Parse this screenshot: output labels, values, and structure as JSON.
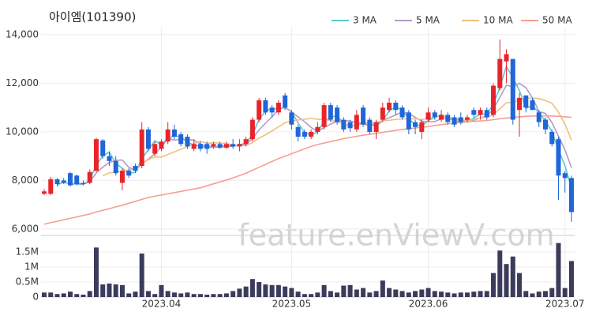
{
  "chart_data": {
    "type": "candlestick",
    "title": "아이엠(101390)",
    "watermark": "feature.enViewV.com",
    "up_color": "#e8242b",
    "down_color": "#1f66d9",
    "grid": true,
    "categories": [
      null,
      null,
      null,
      null,
      null,
      null,
      null,
      null,
      null,
      null,
      null,
      null,
      null,
      null,
      null,
      null,
      null,
      null,
      "2023.04",
      null,
      null,
      null,
      null,
      null,
      null,
      null,
      null,
      null,
      null,
      null,
      null,
      null,
      null,
      null,
      null,
      null,
      null,
      null,
      "2023.05",
      null,
      null,
      null,
      null,
      null,
      null,
      null,
      null,
      null,
      null,
      null,
      null,
      null,
      null,
      null,
      null,
      null,
      null,
      null,
      null,
      "2023.06",
      null,
      null,
      null,
      null,
      null,
      null,
      null,
      null,
      null,
      null,
      null,
      null,
      null,
      null,
      null,
      null,
      null,
      null,
      null,
      null,
      "2023.07",
      null
    ],
    "open": [
      7450,
      7450,
      8050,
      8000,
      8300,
      8200,
      7900,
      7900,
      8400,
      9650,
      9000,
      8800,
      7900,
      8400,
      8600,
      8600,
      10100,
      9100,
      9300,
      9600,
      10100,
      9900,
      9800,
      9300,
      9500,
      9500,
      9400,
      9500,
      9350,
      9500,
      9400,
      9500,
      9700,
      10500,
      11300,
      11000,
      10800,
      11500,
      10800,
      10200,
      10000,
      9800,
      10000,
      10200,
      11100,
      11000,
      10500,
      10400,
      10100,
      11000,
      10500,
      10000,
      10500,
      10900,
      11200,
      11000,
      10800,
      10400,
      10000,
      10500,
      10800,
      10500,
      10700,
      10600,
      10600,
      10500,
      10900,
      10700,
      10900,
      10700,
      11800,
      12900,
      13000,
      10900,
      11500,
      11300,
      10800,
      10500,
      10000,
      9700,
      8300,
      8100
    ],
    "high": [
      7650,
      8150,
      8100,
      8100,
      8350,
      8250,
      8000,
      8450,
      9750,
      9700,
      9200,
      9000,
      8500,
      8500,
      8700,
      10400,
      10200,
      9600,
      9700,
      10400,
      10300,
      10000,
      9900,
      9700,
      9600,
      9600,
      9600,
      9600,
      9600,
      9700,
      9700,
      9800,
      10600,
      11400,
      11400,
      11100,
      11300,
      11600,
      10900,
      10300,
      10100,
      10100,
      10400,
      11200,
      11200,
      11100,
      10600,
      10500,
      10900,
      11100,
      10600,
      10500,
      11200,
      11400,
      11300,
      11100,
      10900,
      10500,
      10500,
      11000,
      10900,
      10900,
      10800,
      10700,
      10800,
      10700,
      11000,
      11000,
      11000,
      12000,
      13800,
      13400,
      13000,
      11600,
      11500,
      11400,
      10900,
      10600,
      10100,
      9800,
      8400,
      8200
    ],
    "low": [
      7400,
      7400,
      7750,
      7850,
      7750,
      7800,
      7800,
      7850,
      8350,
      8900,
      8600,
      8200,
      7600,
      8100,
      8300,
      8500,
      9200,
      9000,
      9200,
      9500,
      9700,
      9400,
      9300,
      9200,
      9200,
      9100,
      9300,
      9300,
      9300,
      9300,
      9200,
      9400,
      9600,
      10400,
      10700,
      10600,
      10700,
      10900,
      10100,
      9600,
      9700,
      9700,
      9900,
      10100,
      10400,
      10300,
      10000,
      10000,
      10000,
      10200,
      9900,
      9700,
      10400,
      10800,
      10700,
      10500,
      9900,
      9900,
      9700,
      10400,
      10500,
      10400,
      10300,
      10200,
      10300,
      10400,
      10600,
      10500,
      10500,
      10600,
      11700,
      12000,
      10300,
      9800,
      10800,
      10900,
      10200,
      9900,
      9400,
      7200,
      7500,
      6300
    ],
    "close": [
      7550,
      8050,
      7850,
      7900,
      7800,
      7850,
      7850,
      8350,
      9700,
      9000,
      8800,
      8300,
      8400,
      8200,
      8400,
      10100,
      9300,
      9500,
      9600,
      10100,
      9800,
      9500,
      9400,
      9500,
      9300,
      9300,
      9500,
      9350,
      9500,
      9400,
      9500,
      9700,
      10500,
      11300,
      10800,
      10800,
      11200,
      11000,
      10300,
      9800,
      9800,
      10000,
      10200,
      11100,
      10500,
      10400,
      10100,
      10150,
      10700,
      10300,
      10000,
      10400,
      11000,
      11200,
      10900,
      10600,
      10100,
      10200,
      10400,
      10800,
      10600,
      10700,
      10400,
      10300,
      10400,
      10600,
      10700,
      10900,
      10600,
      11900,
      13000,
      13200,
      10500,
      11400,
      11000,
      10900,
      10400,
      10100,
      9500,
      8200,
      8100,
      6700
    ],
    "series": [
      {
        "name": "3 MA",
        "color": "#5bc8d0",
        "values": [
          null,
          null,
          7817,
          7933,
          7850,
          7850,
          7833,
          8017,
          8633,
          9017,
          9167,
          8700,
          8500,
          8300,
          8333,
          8900,
          9267,
          9633,
          9467,
          9733,
          9833,
          9800,
          9567,
          9467,
          9400,
          9367,
          9367,
          9383,
          9450,
          9417,
          9467,
          9533,
          9900,
          10500,
          10867,
          10967,
          10933,
          11000,
          10833,
          10367,
          9967,
          9867,
          10000,
          10433,
          10600,
          10667,
          10333,
          10217,
          10317,
          10383,
          10333,
          10233,
          10467,
          10867,
          11033,
          10900,
          10533,
          10300,
          10233,
          10467,
          10600,
          10700,
          10567,
          10467,
          10367,
          10433,
          10567,
          10733,
          10733,
          11133,
          11833,
          12700,
          12233,
          11700,
          10967,
          11100,
          10767,
          10467,
          10000,
          9267,
          8600,
          7667
        ]
      },
      {
        "name": "5 MA",
        "color": "#b49bc8",
        "values": [
          null,
          null,
          null,
          null,
          7830,
          7890,
          7850,
          7950,
          8310,
          8550,
          8740,
          8830,
          8840,
          8540,
          8420,
          8680,
          8880,
          9100,
          9380,
          9720,
          9660,
          9700,
          9680,
          9660,
          9500,
          9400,
          9400,
          9390,
          9390,
          9410,
          9450,
          9490,
          9720,
          10080,
          10360,
          10620,
          10920,
          11020,
          10820,
          10620,
          10420,
          10180,
          10020,
          10180,
          10320,
          10440,
          10460,
          10450,
          10370,
          10330,
          10250,
          10310,
          10480,
          10580,
          10700,
          10820,
          10760,
          10600,
          10440,
          10420,
          10420,
          10540,
          10580,
          10560,
          10480,
          10480,
          10480,
          10580,
          10640,
          10940,
          11420,
          11920,
          11840,
          12000,
          11820,
          11400,
          10840,
          10760,
          10380,
          9820,
          9260,
          8520
        ]
      },
      {
        "name": "10 MA",
        "color": "#f0c080",
        "values": [
          null,
          null,
          null,
          null,
          null,
          null,
          null,
          null,
          null,
          8190,
          8315,
          8340,
          8395,
          8425,
          8485,
          8710,
          8855,
          8970,
          8960,
          9070,
          9170,
          9290,
          9390,
          9520,
          9610,
          9530,
          9550,
          9535,
          9525,
          9455,
          9425,
          9445,
          9555,
          9735,
          9885,
          10035,
          10205,
          10370,
          10450,
          10490,
          10520,
          10550,
          10520,
          10500,
          10470,
          10430,
          10320,
          10235,
          10275,
          10325,
          10345,
          10385,
          10465,
          10475,
          10515,
          10535,
          10535,
          10540,
          10510,
          10560,
          10620,
          10650,
          10590,
          10500,
          10450,
          10450,
          10510,
          10580,
          10600,
          10710,
          10950,
          11200,
          11210,
          11320,
          11380,
          11400,
          11370,
          11290,
          11180,
          10810,
          10320,
          9660
        ]
      },
      {
        "name": "50 MA",
        "color": "#f4a090",
        "values": [
          6200,
          6260,
          6320,
          6380,
          6440,
          6500,
          6560,
          6620,
          6700,
          6770,
          6840,
          6910,
          6980,
          7060,
          7140,
          7220,
          7300,
          7350,
          7400,
          7450,
          7500,
          7550,
          7600,
          7650,
          7700,
          7780,
          7860,
          7940,
          8020,
          8100,
          8200,
          8300,
          8420,
          8540,
          8660,
          8780,
          8900,
          9000,
          9100,
          9200,
          9300,
          9400,
          9480,
          9540,
          9600,
          9660,
          9720,
          9770,
          9820,
          9860,
          9900,
          9940,
          9980,
          10020,
          10060,
          10100,
          10130,
          10160,
          10190,
          10220,
          10260,
          10300,
          10330,
          10360,
          10390,
          10410,
          10430,
          10450,
          10470,
          10500,
          10540,
          10570,
          10600,
          10620,
          10640,
          10650,
          10660,
          10660,
          10650,
          10640,
          10620,
          10600
        ]
      }
    ],
    "ylim": [
      5770,
      14290
    ],
    "yticks": [
      {
        "value": 6000,
        "label": "6,000"
      },
      {
        "value": 8000,
        "label": "8,000"
      },
      {
        "value": 10000,
        "label": "10,000"
      },
      {
        "value": 12000,
        "label": "12,000"
      },
      {
        "value": 14000,
        "label": "14,000"
      }
    ],
    "volume": {
      "type": "bar",
      "color": "#3b3b5c",
      "values": [
        150000,
        150000,
        100000,
        120000,
        180000,
        100000,
        80000,
        200000,
        1650000,
        420000,
        450000,
        420000,
        400000,
        120000,
        180000,
        1450000,
        200000,
        100000,
        400000,
        200000,
        150000,
        120000,
        150000,
        100000,
        100000,
        80000,
        100000,
        100000,
        120000,
        200000,
        280000,
        350000,
        600000,
        500000,
        420000,
        400000,
        400000,
        350000,
        300000,
        180000,
        100000,
        100000,
        150000,
        400000,
        200000,
        150000,
        380000,
        400000,
        250000,
        300000,
        150000,
        200000,
        550000,
        300000,
        250000,
        200000,
        150000,
        200000,
        250000,
        300000,
        200000,
        180000,
        150000,
        120000,
        150000,
        150000,
        180000,
        200000,
        200000,
        800000,
        1550000,
        1100000,
        1350000,
        800000,
        200000,
        120000,
        180000,
        200000,
        300000,
        1800000,
        300000,
        1200000
      ],
      "ylim": [
        0,
        2000000
      ],
      "yticks": [
        0,
        {
          "value": 500000,
          "label": "0.5M"
        },
        {
          "value": 1000000,
          "label": "1M"
        },
        {
          "value": 1500000,
          "label": "1.5M"
        }
      ]
    }
  }
}
